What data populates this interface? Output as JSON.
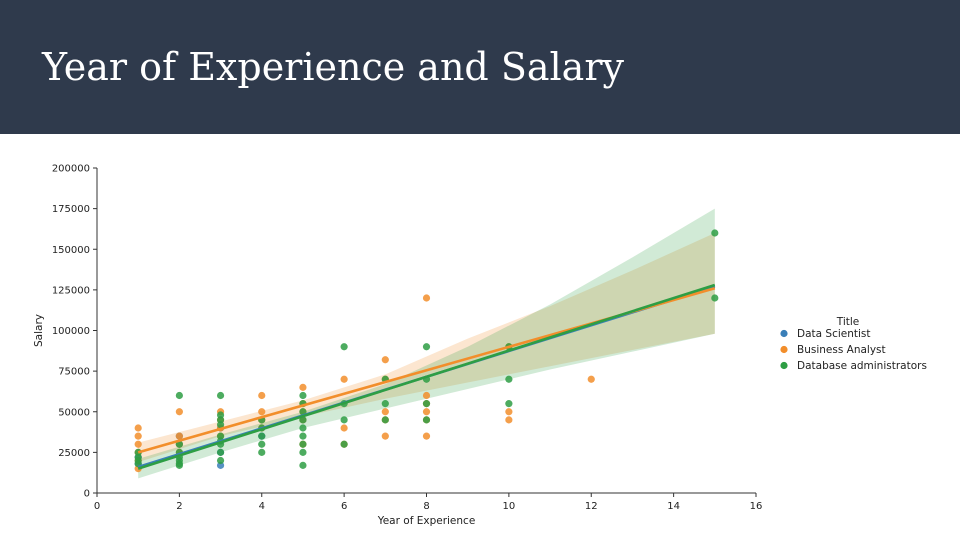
{
  "slide": {
    "title": "Year of Experience and Salary"
  },
  "colors": {
    "header_bg": "#2f3a4c",
    "data_scientist": "#3a7fb8",
    "business_analyst": "#f28e2b",
    "database_administrators": "#2e9e44"
  },
  "chart_data": {
    "type": "scatter",
    "title": "",
    "xlabel": "Year of Experience",
    "ylabel": "Salary",
    "xlim": [
      0,
      16
    ],
    "ylim": [
      0,
      200000
    ],
    "xticks": [
      "0",
      "2",
      "4",
      "6",
      "8",
      "10",
      "12",
      "14",
      "16"
    ],
    "yticks": [
      "0",
      "25000",
      "50000",
      "75000",
      "100000",
      "125000",
      "150000",
      "175000",
      "200000"
    ],
    "grid": false,
    "legend": {
      "title": "Title",
      "placement": "right"
    },
    "series": [
      {
        "name": "Data Scientist",
        "color": "#3a7fb8",
        "points": [
          [
            1,
            18000
          ],
          [
            1,
            22000
          ],
          [
            2,
            35000
          ],
          [
            2,
            30000
          ],
          [
            3,
            17000
          ],
          [
            3,
            25000
          ],
          [
            3,
            40000
          ],
          [
            4,
            35000
          ],
          [
            5,
            45000
          ]
        ],
        "trend": [
          [
            1,
            16000
          ],
          [
            15,
            127000
          ]
        ]
      },
      {
        "name": "Business Analyst",
        "color": "#f28e2b",
        "points": [
          [
            1,
            40000
          ],
          [
            1,
            35000
          ],
          [
            1,
            30000
          ],
          [
            1,
            25000
          ],
          [
            1,
            20000
          ],
          [
            1,
            15000
          ],
          [
            2,
            50000
          ],
          [
            2,
            35000
          ],
          [
            2,
            30000
          ],
          [
            2,
            25000
          ],
          [
            3,
            50000
          ],
          [
            3,
            45000
          ],
          [
            3,
            40000
          ],
          [
            3,
            35000
          ],
          [
            4,
            60000
          ],
          [
            4,
            50000
          ],
          [
            4,
            45000
          ],
          [
            4,
            40000
          ],
          [
            5,
            65000
          ],
          [
            5,
            55000
          ],
          [
            5,
            50000
          ],
          [
            5,
            45000
          ],
          [
            5,
            30000
          ],
          [
            6,
            70000
          ],
          [
            6,
            40000
          ],
          [
            6,
            30000
          ],
          [
            7,
            82000
          ],
          [
            7,
            70000
          ],
          [
            7,
            50000
          ],
          [
            7,
            45000
          ],
          [
            7,
            35000
          ],
          [
            8,
            120000
          ],
          [
            8,
            60000
          ],
          [
            8,
            55000
          ],
          [
            8,
            50000
          ],
          [
            8,
            45000
          ],
          [
            8,
            35000
          ],
          [
            10,
            90000
          ],
          [
            10,
            50000
          ],
          [
            10,
            45000
          ],
          [
            12,
            70000
          ]
        ],
        "trend": [
          [
            1,
            25000
          ],
          [
            15,
            126000
          ]
        ],
        "band": {
          "upper": [
            [
              1,
              31000
            ],
            [
              3,
              44000
            ],
            [
              5,
              57000
            ],
            [
              7,
              73000
            ],
            [
              9,
              95000
            ],
            [
              11,
              115000
            ],
            [
              13,
              137000
            ],
            [
              15,
              160000
            ]
          ],
          "lower": [
            [
              1,
              19000
            ],
            [
              3,
              35000
            ],
            [
              5,
              47000
            ],
            [
              7,
              58000
            ],
            [
              9,
              68000
            ],
            [
              11,
              78000
            ],
            [
              13,
              88000
            ],
            [
              15,
              98000
            ]
          ]
        }
      },
      {
        "name": "Database administrators",
        "color": "#2e9e44",
        "points": [
          [
            1,
            25000
          ],
          [
            1,
            22000
          ],
          [
            1,
            20000
          ],
          [
            1,
            18000
          ],
          [
            2,
            60000
          ],
          [
            2,
            30000
          ],
          [
            2,
            25000
          ],
          [
            2,
            22000
          ],
          [
            2,
            20000
          ],
          [
            2,
            18000
          ],
          [
            2,
            17000
          ],
          [
            3,
            60000
          ],
          [
            3,
            48000
          ],
          [
            3,
            45000
          ],
          [
            3,
            42000
          ],
          [
            3,
            35000
          ],
          [
            3,
            32000
          ],
          [
            3,
            30000
          ],
          [
            3,
            25000
          ],
          [
            3,
            20000
          ],
          [
            4,
            45000
          ],
          [
            4,
            40000
          ],
          [
            4,
            35000
          ],
          [
            4,
            30000
          ],
          [
            4,
            25000
          ],
          [
            5,
            60000
          ],
          [
            5,
            55000
          ],
          [
            5,
            50000
          ],
          [
            5,
            45000
          ],
          [
            5,
            40000
          ],
          [
            5,
            35000
          ],
          [
            5,
            30000
          ],
          [
            5,
            25000
          ],
          [
            5,
            17000
          ],
          [
            6,
            90000
          ],
          [
            6,
            55000
          ],
          [
            6,
            45000
          ],
          [
            6,
            30000
          ],
          [
            7,
            70000
          ],
          [
            7,
            55000
          ],
          [
            7,
            45000
          ],
          [
            8,
            90000
          ],
          [
            8,
            70000
          ],
          [
            8,
            55000
          ],
          [
            8,
            45000
          ],
          [
            10,
            90000
          ],
          [
            10,
            70000
          ],
          [
            10,
            55000
          ],
          [
            15,
            160000
          ],
          [
            15,
            120000
          ]
        ],
        "trend": [
          [
            1,
            15000
          ],
          [
            15,
            128000
          ]
        ],
        "band": {
          "upper": [
            [
              1,
              21000
            ],
            [
              3,
              36000
            ],
            [
              5,
              50000
            ],
            [
              7,
              67000
            ],
            [
              9,
              90000
            ],
            [
              11,
              116000
            ],
            [
              13,
              145000
            ],
            [
              15,
              175000
            ]
          ],
          "lower": [
            [
              1,
              9000
            ],
            [
              3,
              25000
            ],
            [
              5,
              40000
            ],
            [
              7,
              52000
            ],
            [
              9,
              64000
            ],
            [
              11,
              76000
            ],
            [
              13,
              87000
            ],
            [
              15,
              98000
            ]
          ]
        }
      }
    ]
  }
}
